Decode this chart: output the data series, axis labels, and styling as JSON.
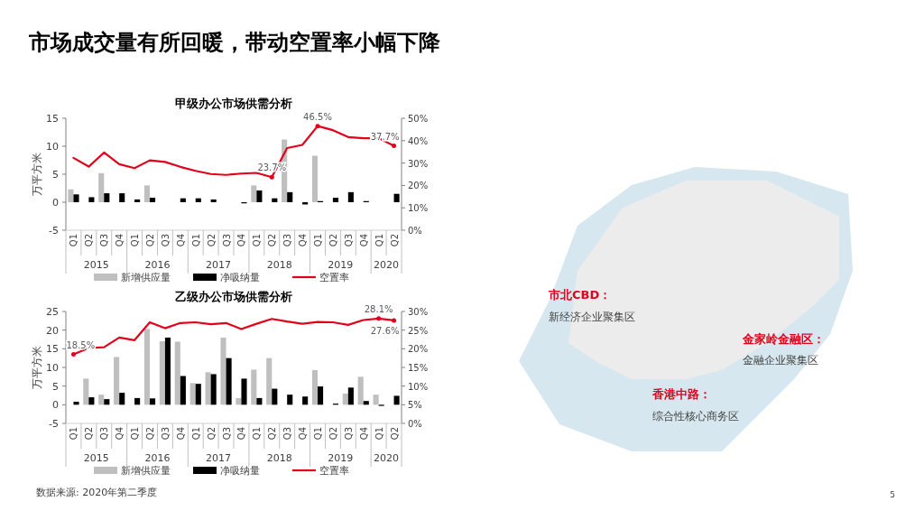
{
  "chart_data": [
    {
      "type": "other",
      "title": "市场成交量有所回暖，带动空置率小幅下降",
      "annotations": [
        "数据来源: 2020年第二季度",
        "5"
      ]
    },
    {
      "type": "bar",
      "title": "甲级办公市场供需分析",
      "ylabel": "万平方米",
      "legend": "bottom",
      "categories": [
        "Q1",
        "Q2",
        "Q3",
        "Q4",
        "Q1",
        "Q2",
        "Q3",
        "Q4",
        "Q1",
        "Q2",
        "Q3",
        "Q4",
        "Q1",
        "Q2",
        "Q3",
        "Q4",
        "Q1",
        "Q2",
        "Q3",
        "Q4",
        "Q1",
        "Q2"
      ],
      "annotations": [
        "2015",
        "2016",
        "2017",
        "2018",
        "2019",
        "2020"
      ],
      "ylim": [
        -5,
        15
      ],
      "yticks": [
        -5,
        0,
        5,
        10,
        15
      ],
      "y2lim": [
        0,
        50
      ],
      "y2ticks": [
        {
          "value": 0,
          "label": "0%"
        },
        {
          "value": 10,
          "label": "10%"
        },
        {
          "value": 20,
          "label": "20%"
        },
        {
          "value": 30,
          "label": "30%"
        },
        {
          "value": 40,
          "label": "40%"
        },
        {
          "value": 50,
          "label": "50%"
        }
      ],
      "series": [
        {
          "name": "新增供应量",
          "type": "bar",
          "color": "#bfbfbf",
          "values": [
            2.3,
            0,
            5.2,
            0,
            0,
            3.0,
            0,
            0,
            0,
            0,
            0,
            0,
            3.0,
            0,
            11.2,
            0,
            8.3,
            0,
            0,
            0,
            0,
            0
          ]
        },
        {
          "name": "净吸纳量",
          "type": "bar",
          "color": "#000000",
          "values": [
            1.4,
            0.9,
            1.6,
            1.6,
            0.5,
            0.8,
            0,
            0.7,
            0.7,
            0.5,
            0,
            -0.2,
            2.1,
            0.7,
            1.8,
            -0.4,
            0.2,
            0.8,
            1.8,
            0.2,
            0,
            1.5
          ]
        },
        {
          "name": "空置率",
          "type": "line",
          "axis": "y2",
          "color": "#e3001b",
          "line_style": "solid",
          "values": [
            32.3,
            28.4,
            34.7,
            29.5,
            27.7,
            31.2,
            30.5,
            28.3,
            26.5,
            25.1,
            24.7,
            25.3,
            25.6,
            23.7,
            36.7,
            38.1,
            46.5,
            44.7,
            41.6,
            41.1,
            41.1,
            37.7
          ],
          "value_labels": [
            null,
            null,
            null,
            null,
            null,
            null,
            null,
            null,
            null,
            null,
            null,
            null,
            null,
            "23.7%",
            null,
            null,
            "46.5%",
            null,
            null,
            null,
            null,
            "37.7%"
          ]
        }
      ]
    },
    {
      "type": "bar",
      "title": "乙级办公市场供需分析",
      "ylabel": "万平方米",
      "legend": "bottom",
      "categories": [
        "Q1",
        "Q2",
        "Q3",
        "Q4",
        "Q1",
        "Q2",
        "Q3",
        "Q4",
        "Q1",
        "Q2",
        "Q3",
        "Q4",
        "Q1",
        "Q2",
        "Q3",
        "Q4",
        "Q1",
        "Q2",
        "Q3",
        "Q4",
        "Q1",
        "Q2"
      ],
      "annotations": [
        "2015",
        "2016",
        "2017",
        "2018",
        "2019",
        "2020"
      ],
      "ylim": [
        -5,
        25
      ],
      "yticks": [
        -5,
        0,
        5,
        10,
        15,
        20,
        25
      ],
      "y2lim": [
        0,
        30
      ],
      "y2ticks": [
        {
          "value": 0,
          "label": "0%"
        },
        {
          "value": 5,
          "label": "5%"
        },
        {
          "value": 10,
          "label": "10%"
        },
        {
          "value": 15,
          "label": "15%"
        },
        {
          "value": 20,
          "label": "20%"
        },
        {
          "value": 25,
          "label": "25%"
        },
        {
          "value": 30,
          "label": "30%"
        }
      ],
      "series": [
        {
          "name": "新增供应量",
          "type": "bar",
          "color": "#bfbfbf",
          "values": [
            0,
            7.0,
            2.7,
            12.8,
            0,
            20.3,
            17.0,
            16.9,
            5.8,
            8.7,
            18.0,
            1.8,
            9.4,
            12.5,
            0,
            0,
            9.3,
            0,
            3.0,
            7.5,
            2.7,
            0
          ]
        },
        {
          "name": "净吸纳量",
          "type": "bar",
          "color": "#000000",
          "values": [
            0.8,
            2.0,
            1.5,
            3.2,
            1.8,
            1.7,
            18.0,
            7.7,
            5.6,
            8.2,
            12.5,
            7.0,
            1.8,
            4.3,
            2.7,
            2.2,
            4.9,
            0.3,
            4.6,
            1.0,
            -0.3,
            2.4
          ]
        },
        {
          "name": "空置率",
          "type": "line",
          "axis": "y2",
          "color": "#e3001b",
          "line_style": "solid",
          "values": [
            18.5,
            20.2,
            20.4,
            23.0,
            22.3,
            27.1,
            25.5,
            26.9,
            27.1,
            26.6,
            26.9,
            25.3,
            26.7,
            28.0,
            27.3,
            26.7,
            27.2,
            27.1,
            26.4,
            27.7,
            28.1,
            27.6
          ],
          "value_labels": [
            "18.5%",
            null,
            null,
            null,
            null,
            null,
            null,
            null,
            null,
            null,
            null,
            null,
            null,
            null,
            null,
            null,
            null,
            null,
            null,
            null,
            "28.1%",
            "27.6%"
          ]
        }
      ]
    },
    {
      "type": "other",
      "annotations": [
        "市北CBD：",
        "新经济企业聚集区",
        "金家岭金融区：",
        "金融企业聚集区",
        "香港中路：",
        "综合性核心商务区"
      ]
    }
  ]
}
